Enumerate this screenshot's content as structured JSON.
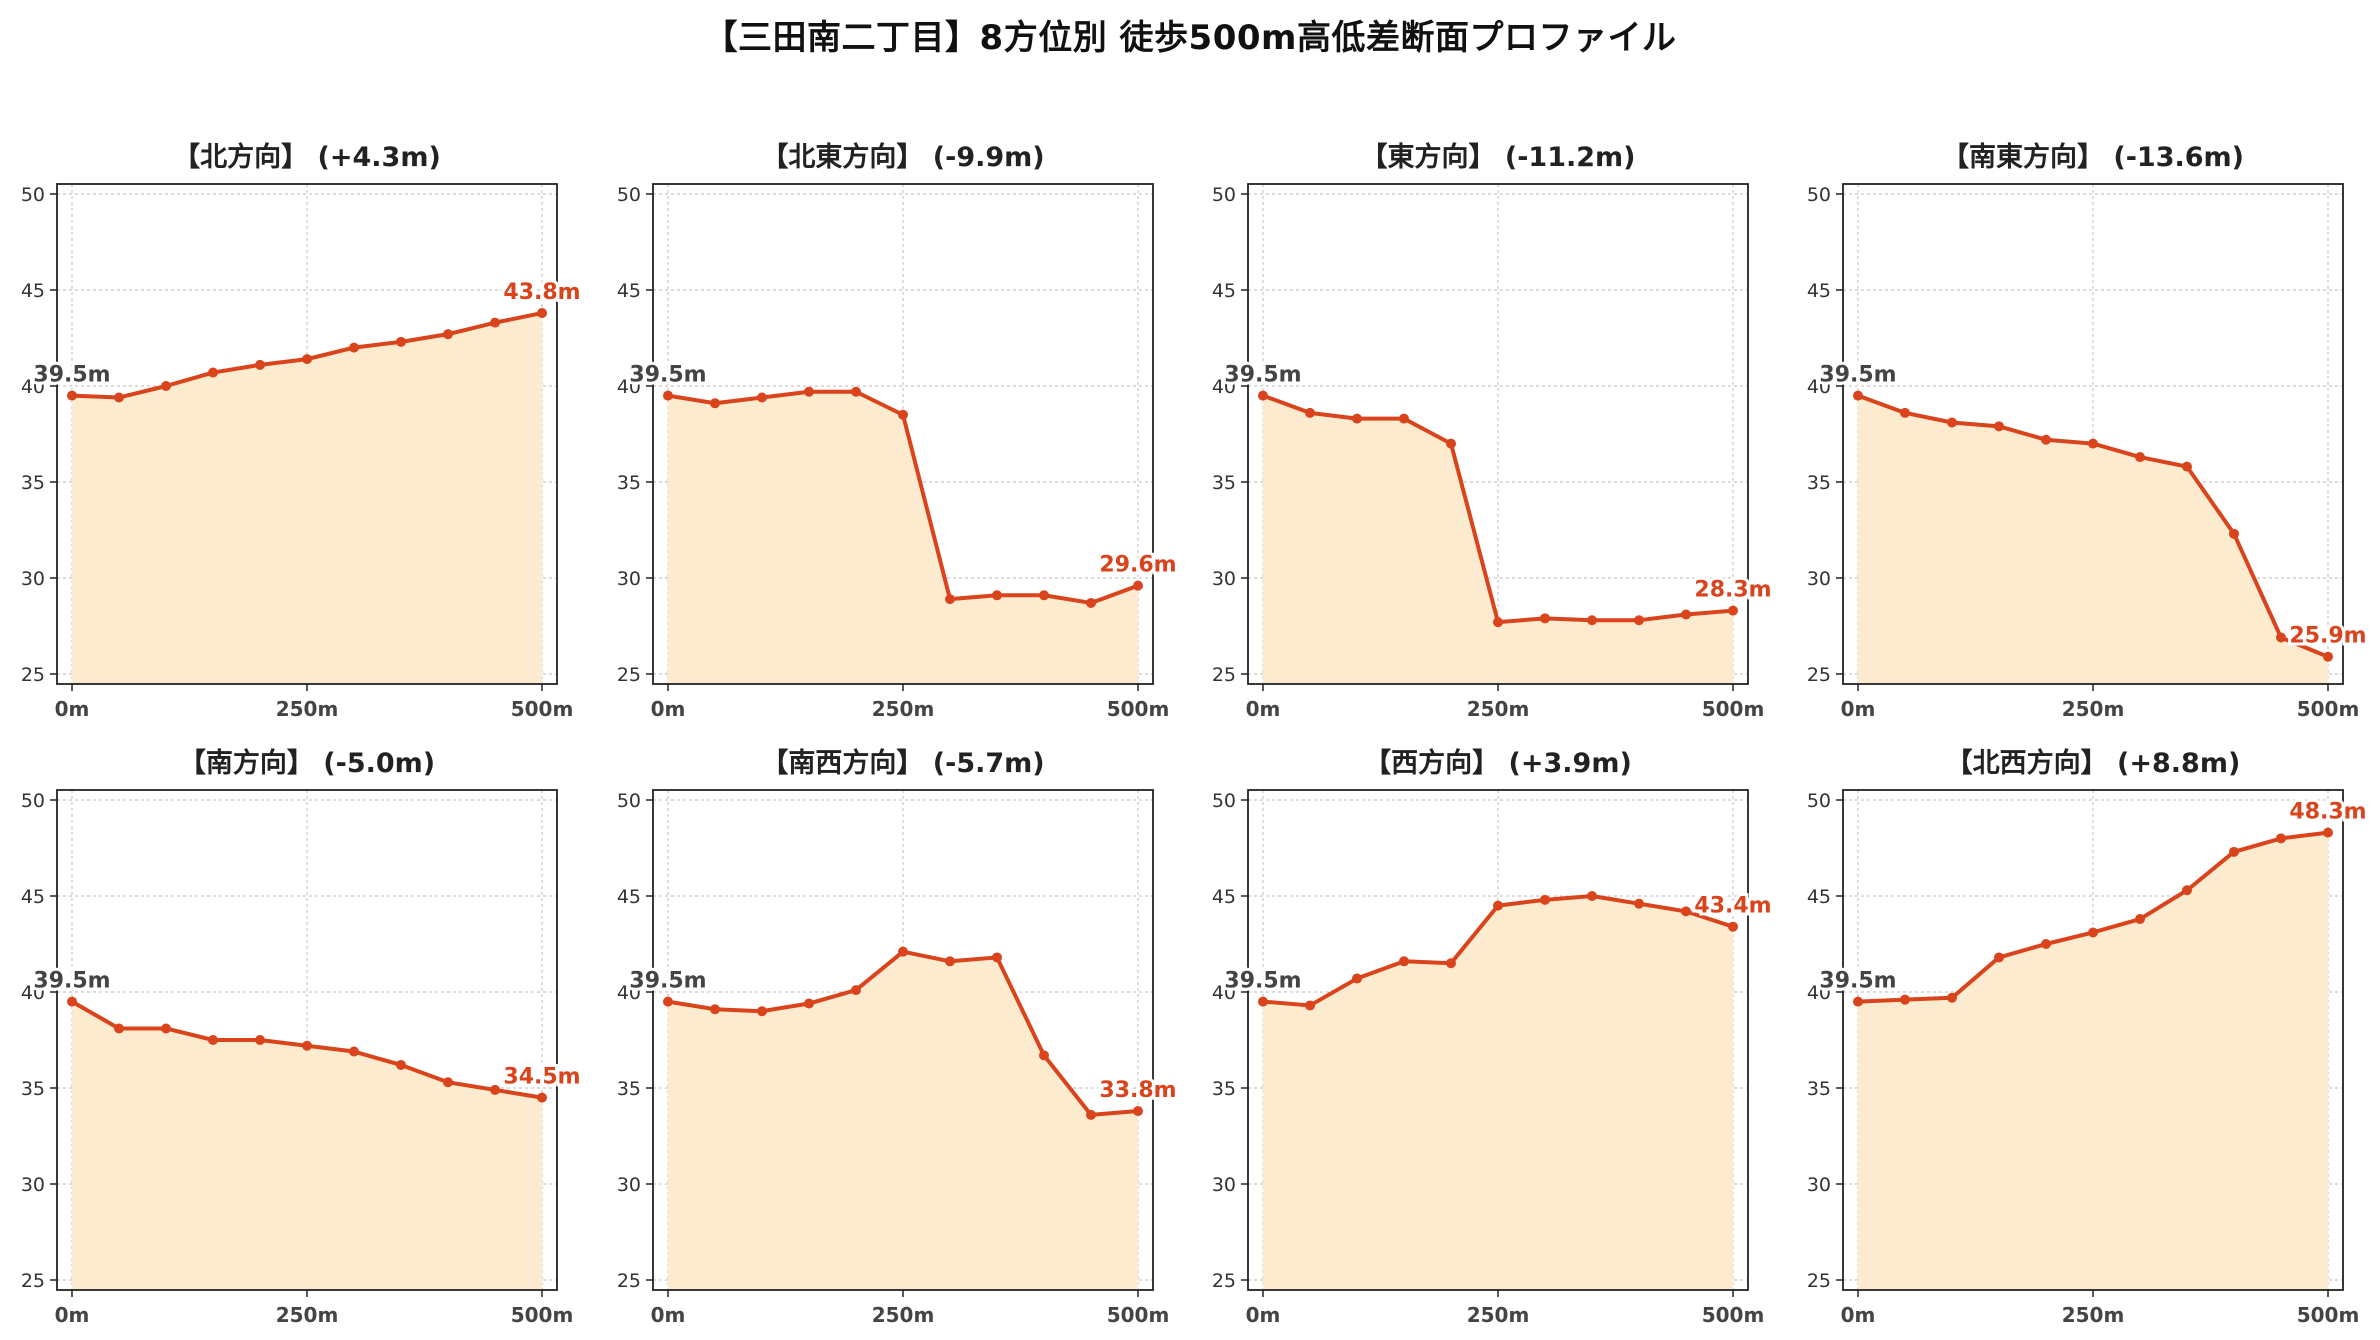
{
  "title": "【三田南二丁目】8方位別 徒歩500m高低差断面プロファイル",
  "colors": {
    "line": "#d9441c",
    "fill": "#fdebd0",
    "grid": "#c8c8c8",
    "start_label": "#444444"
  },
  "chart_data": [
    {
      "type": "area",
      "title": "【北方向】 (+4.3m)",
      "x": [
        0,
        50,
        100,
        150,
        200,
        250,
        300,
        350,
        400,
        450,
        500
      ],
      "values": [
        39.5,
        39.4,
        40.0,
        40.7,
        41.1,
        41.4,
        42.0,
        42.3,
        42.7,
        43.3,
        43.8
      ],
      "start_label": "39.5m",
      "end_label": "43.8m",
      "ylim": [
        25,
        50
      ],
      "yticks": [
        25,
        30,
        35,
        40,
        45,
        50
      ],
      "xticks": [
        0,
        250,
        500
      ],
      "xtick_labels": [
        "0m",
        "250m",
        "500m"
      ],
      "grid": true
    },
    {
      "type": "area",
      "title": "【北東方向】 (-9.9m)",
      "x": [
        0,
        50,
        100,
        150,
        200,
        250,
        300,
        350,
        400,
        450,
        500
      ],
      "values": [
        39.5,
        39.1,
        39.4,
        39.7,
        39.7,
        38.5,
        28.9,
        29.1,
        29.1,
        28.7,
        29.6
      ],
      "start_label": "39.5m",
      "end_label": "29.6m",
      "ylim": [
        25,
        50
      ],
      "yticks": [
        25,
        30,
        35,
        40,
        45,
        50
      ],
      "xticks": [
        0,
        250,
        500
      ],
      "xtick_labels": [
        "0m",
        "250m",
        "500m"
      ],
      "grid": true
    },
    {
      "type": "area",
      "title": "【東方向】 (-11.2m)",
      "x": [
        0,
        50,
        100,
        150,
        200,
        250,
        300,
        350,
        400,
        450,
        500
      ],
      "values": [
        39.5,
        38.6,
        38.3,
        38.3,
        37.0,
        27.7,
        27.9,
        27.8,
        27.8,
        28.1,
        28.3
      ],
      "start_label": "39.5m",
      "end_label": "28.3m",
      "ylim": [
        25,
        50
      ],
      "yticks": [
        25,
        30,
        35,
        40,
        45,
        50
      ],
      "xticks": [
        0,
        250,
        500
      ],
      "xtick_labels": [
        "0m",
        "250m",
        "500m"
      ],
      "grid": true
    },
    {
      "type": "area",
      "title": "【南東方向】 (-13.6m)",
      "x": [
        0,
        50,
        100,
        150,
        200,
        250,
        300,
        350,
        400,
        450,
        500
      ],
      "values": [
        39.5,
        38.6,
        38.1,
        37.9,
        37.2,
        37.0,
        36.3,
        35.8,
        32.3,
        26.9,
        25.9
      ],
      "start_label": "39.5m",
      "end_label": "25.9m",
      "ylim": [
        25,
        50
      ],
      "yticks": [
        25,
        30,
        35,
        40,
        45,
        50
      ],
      "xticks": [
        0,
        250,
        500
      ],
      "xtick_labels": [
        "0m",
        "250m",
        "500m"
      ],
      "grid": true
    },
    {
      "type": "area",
      "title": "【南方向】 (-5.0m)",
      "x": [
        0,
        50,
        100,
        150,
        200,
        250,
        300,
        350,
        400,
        450,
        500
      ],
      "values": [
        39.5,
        38.1,
        38.1,
        37.5,
        37.5,
        37.2,
        36.9,
        36.2,
        35.3,
        34.9,
        34.5
      ],
      "start_label": "39.5m",
      "end_label": "34.5m",
      "ylim": [
        25,
        50
      ],
      "yticks": [
        25,
        30,
        35,
        40,
        45,
        50
      ],
      "xticks": [
        0,
        250,
        500
      ],
      "xtick_labels": [
        "0m",
        "250m",
        "500m"
      ],
      "grid": true
    },
    {
      "type": "area",
      "title": "【南西方向】 (-5.7m)",
      "x": [
        0,
        50,
        100,
        150,
        200,
        250,
        300,
        350,
        400,
        450,
        500
      ],
      "values": [
        39.5,
        39.1,
        39.0,
        39.4,
        40.1,
        42.1,
        41.6,
        41.8,
        36.7,
        33.6,
        33.8
      ],
      "start_label": "39.5m",
      "end_label": "33.8m",
      "ylim": [
        25,
        50
      ],
      "yticks": [
        25,
        30,
        35,
        40,
        45,
        50
      ],
      "xticks": [
        0,
        250,
        500
      ],
      "xtick_labels": [
        "0m",
        "250m",
        "500m"
      ],
      "grid": true
    },
    {
      "type": "area",
      "title": "【西方向】 (+3.9m)",
      "x": [
        0,
        50,
        100,
        150,
        200,
        250,
        300,
        350,
        400,
        450,
        500
      ],
      "values": [
        39.5,
        39.3,
        40.7,
        41.6,
        41.5,
        44.5,
        44.8,
        45.0,
        44.6,
        44.2,
        43.4
      ],
      "start_label": "39.5m",
      "end_label": "43.4m",
      "ylim": [
        25,
        50
      ],
      "yticks": [
        25,
        30,
        35,
        40,
        45,
        50
      ],
      "xticks": [
        0,
        250,
        500
      ],
      "xtick_labels": [
        "0m",
        "250m",
        "500m"
      ],
      "grid": true
    },
    {
      "type": "area",
      "title": "【北西方向】 (+8.8m)",
      "x": [
        0,
        50,
        100,
        150,
        200,
        250,
        300,
        350,
        400,
        450,
        500
      ],
      "values": [
        39.5,
        39.6,
        39.7,
        41.8,
        42.5,
        43.1,
        43.8,
        45.3,
        47.3,
        48.0,
        48.3
      ],
      "start_label": "39.5m",
      "end_label": "48.3m",
      "ylim": [
        25,
        50
      ],
      "yticks": [
        25,
        30,
        35,
        40,
        45,
        50
      ],
      "xticks": [
        0,
        250,
        500
      ],
      "xtick_labels": [
        "0m",
        "250m",
        "500m"
      ],
      "grid": true
    }
  ]
}
